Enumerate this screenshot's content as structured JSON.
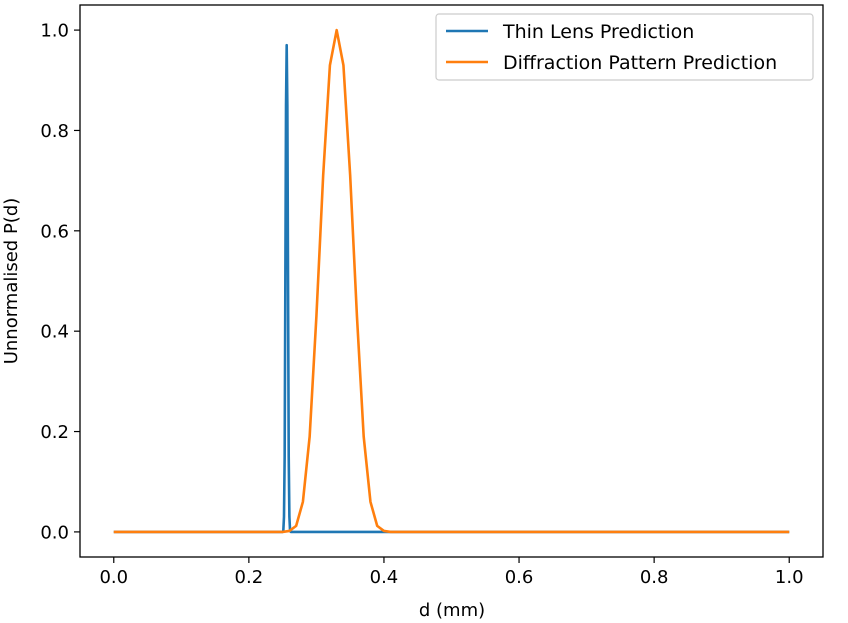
{
  "chart_data": {
    "type": "line",
    "title": "",
    "xlabel": "d (mm)",
    "ylabel": "Unnormalised P(d)",
    "xlim": [
      -0.05,
      1.05
    ],
    "ylim": [
      -0.05,
      1.05
    ],
    "xticks": [
      0.0,
      0.2,
      0.4,
      0.6,
      0.8,
      1.0
    ],
    "xtick_labels": [
      "0.0",
      "0.2",
      "0.4",
      "0.6",
      "0.8",
      "1.0"
    ],
    "yticks": [
      0.0,
      0.2,
      0.4,
      0.6,
      0.8,
      1.0
    ],
    "ytick_labels": [
      "0.0",
      "0.2",
      "0.4",
      "0.6",
      "0.8",
      "1.0"
    ],
    "grid": false,
    "legend_position": "top-right",
    "series": [
      {
        "name": "Thin Lens Prediction",
        "color": "#1f77b4",
        "points": [
          [
            0.0,
            0.0
          ],
          [
            0.25,
            0.0
          ],
          [
            0.251,
            0.002
          ],
          [
            0.252,
            0.03
          ],
          [
            0.253,
            0.15
          ],
          [
            0.254,
            0.5
          ],
          [
            0.255,
            0.85
          ],
          [
            0.256,
            0.97
          ],
          [
            0.257,
            0.85
          ],
          [
            0.258,
            0.5
          ],
          [
            0.259,
            0.15
          ],
          [
            0.26,
            0.03
          ],
          [
            0.261,
            0.002
          ],
          [
            0.262,
            0.0
          ],
          [
            1.0,
            0.0
          ]
        ]
      },
      {
        "name": "Diffraction Pattern Prediction",
        "color": "#ff7f0e",
        "points": [
          [
            0.0,
            0.0
          ],
          [
            0.25,
            0.0
          ],
          [
            0.26,
            0.002
          ],
          [
            0.27,
            0.012
          ],
          [
            0.28,
            0.06
          ],
          [
            0.29,
            0.19
          ],
          [
            0.3,
            0.43
          ],
          [
            0.31,
            0.71
          ],
          [
            0.32,
            0.93
          ],
          [
            0.33,
            1.0
          ],
          [
            0.34,
            0.93
          ],
          [
            0.35,
            0.71
          ],
          [
            0.36,
            0.43
          ],
          [
            0.37,
            0.19
          ],
          [
            0.38,
            0.06
          ],
          [
            0.39,
            0.012
          ],
          [
            0.4,
            0.002
          ],
          [
            0.41,
            0.0
          ],
          [
            1.0,
            0.0
          ]
        ]
      }
    ]
  }
}
